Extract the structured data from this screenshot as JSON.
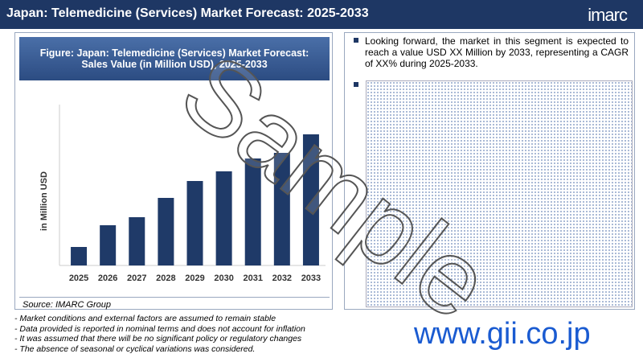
{
  "header": {
    "title": "Japan: Telemedicine (Services) Market Forecast: 2025-2033",
    "logo": "imarc"
  },
  "chart_data": {
    "type": "bar",
    "title": "Figure: Japan: Telemedicine (Services) Market Forecast: Sales Value (in Million USD), 2025-2033",
    "y_label": "in Million USD",
    "categories": [
      "2025",
      "2026",
      "2027",
      "2028",
      "2029",
      "2030",
      "2031",
      "2032",
      "2033"
    ],
    "values": [
      23,
      50,
      60,
      84,
      105,
      117,
      133,
      140,
      163
    ],
    "color": "#1f3a68",
    "ylim": [
      0,
      170
    ]
  },
  "source": "Source: IMARC Group",
  "insights": [
    "Looking forward, the market in this segment is expected to reach a value USD XX Million by 2033, representing a CAGR of XX% during 2025-2033."
  ],
  "notes": [
    "- Market conditions and external factors are assumed to remain stable",
    "- Data provided is reported in nominal terms and does not account for inflation",
    "- It was assumed that there will be no significant policy or regulatory changes",
    "- The absence of seasonal or cyclical variations was considered."
  ],
  "watermark": "Sample",
  "website": "www.gii.co.jp"
}
